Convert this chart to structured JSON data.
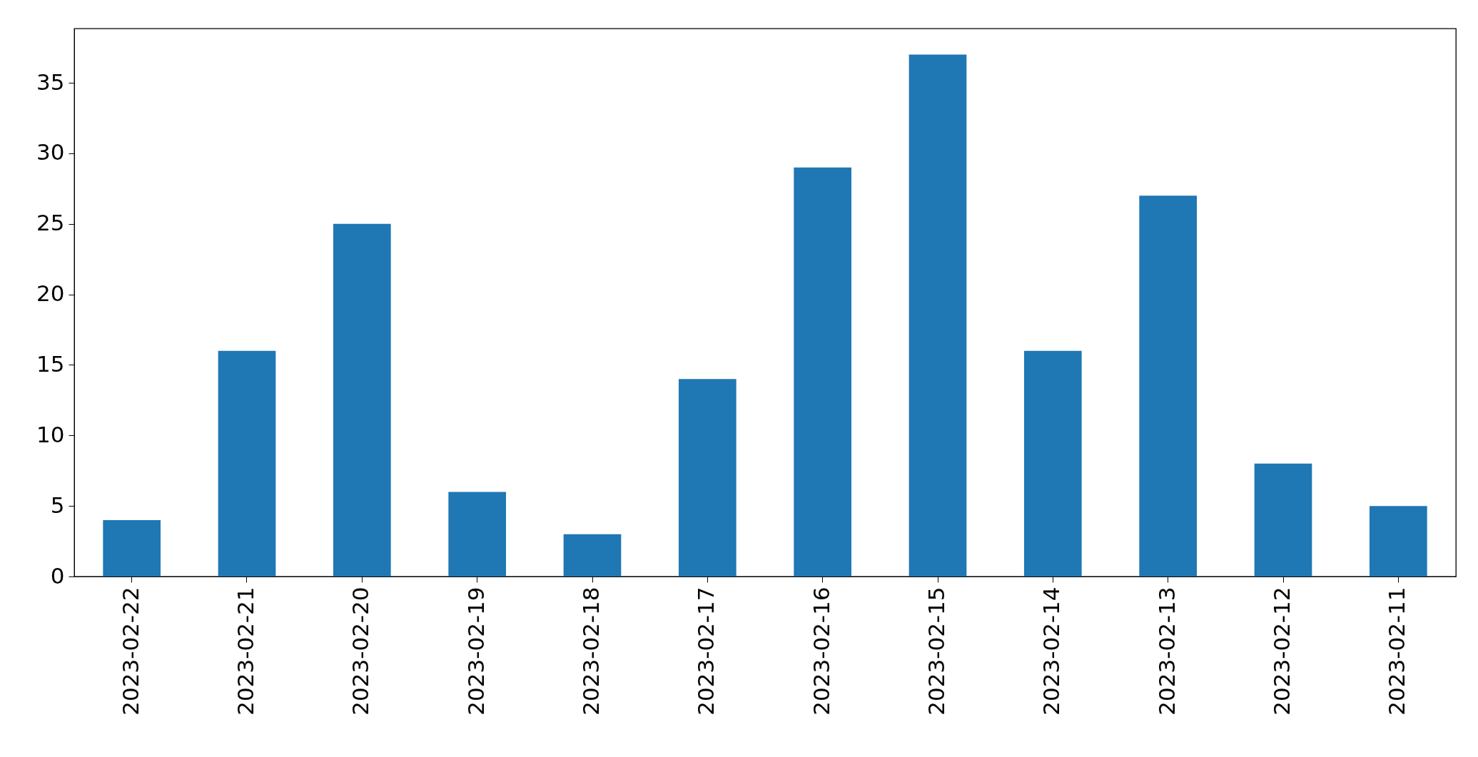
{
  "chart_data": {
    "type": "bar",
    "categories": [
      "2023-02-22",
      "2023-02-21",
      "2023-02-20",
      "2023-02-19",
      "2023-02-18",
      "2023-02-17",
      "2023-02-16",
      "2023-02-15",
      "2023-02-14",
      "2023-02-13",
      "2023-02-12",
      "2023-02-11"
    ],
    "values": [
      4,
      16,
      25,
      6,
      3,
      14,
      29,
      37,
      16,
      27,
      8,
      5
    ],
    "color": "#1f77b4",
    "ylim": [
      0,
      38.85
    ],
    "yticks": [
      0,
      5,
      10,
      15,
      20,
      25,
      30,
      35
    ],
    "grid": false
  }
}
